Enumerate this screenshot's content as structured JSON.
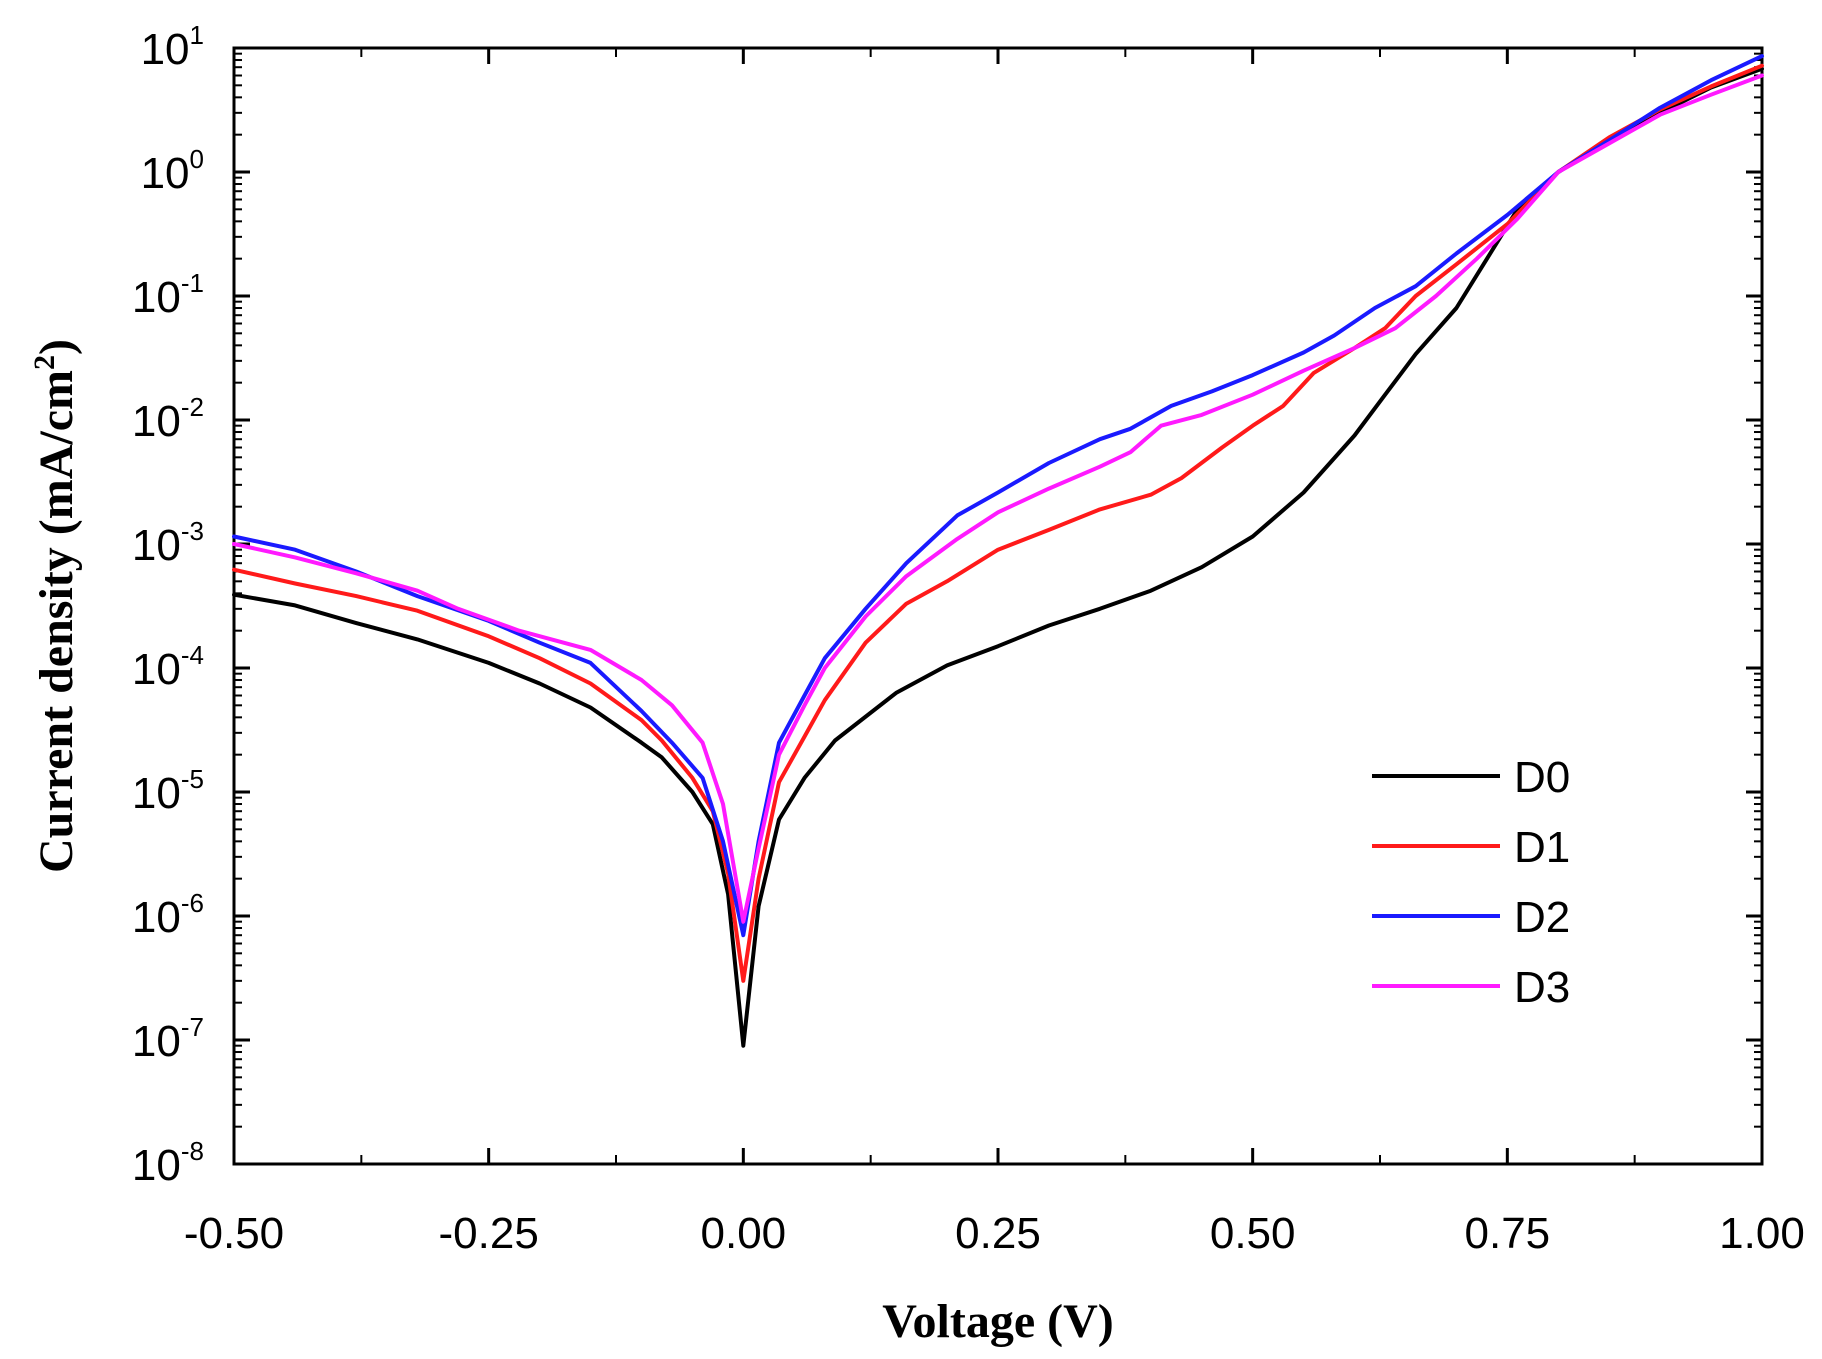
{
  "chart_data": {
    "type": "line",
    "y_scale": "log",
    "title": "",
    "xlabel": "Voltage (V)",
    "ylabel": "Current density (mA/cm",
    "ylabel_sup": "2",
    "ylabel_close": ")",
    "xlim": [
      -0.5,
      1.0
    ],
    "ylim": [
      1e-08,
      10
    ],
    "x_ticks": [
      -0.5,
      -0.25,
      0.0,
      0.25,
      0.5,
      0.75,
      1.0
    ],
    "x_tick_labels": [
      "-0.50",
      "-0.25",
      "0.00",
      "0.25",
      "0.50",
      "0.75",
      "1.00"
    ],
    "y_tick_exponents": [
      -8,
      -7,
      -6,
      -5,
      -4,
      -3,
      -2,
      -1,
      0,
      1
    ],
    "y_tick_labels": [
      {
        "base": "10",
        "exp": "-8"
      },
      {
        "base": "10",
        "exp": "-7"
      },
      {
        "base": "10",
        "exp": "-6"
      },
      {
        "base": "10",
        "exp": "-5"
      },
      {
        "base": "10",
        "exp": "-4"
      },
      {
        "base": "10",
        "exp": "-3"
      },
      {
        "base": "10",
        "exp": "-2"
      },
      {
        "base": "10",
        "exp": "-1"
      },
      {
        "base": "10",
        "exp": "0"
      },
      {
        "base": "10",
        "exp": "1"
      }
    ],
    "legend_position": "lower-right",
    "series": [
      {
        "name": "D0",
        "color": "#000000",
        "points": [
          [
            -0.5,
            0.00039
          ],
          [
            -0.44,
            0.00032
          ],
          [
            -0.38,
            0.00023
          ],
          [
            -0.32,
            0.00017
          ],
          [
            -0.25,
            0.00011
          ],
          [
            -0.2,
            7.5e-05
          ],
          [
            -0.15,
            4.8e-05
          ],
          [
            -0.1,
            2.5e-05
          ],
          [
            -0.08,
            1.9e-05
          ],
          [
            -0.05,
            1e-05
          ],
          [
            -0.03,
            5.5e-06
          ],
          [
            -0.015,
            1.5e-06
          ],
          [
            0.0,
            9e-08
          ],
          [
            0.015,
            1.2e-06
          ],
          [
            0.035,
            6e-06
          ],
          [
            0.06,
            1.3e-05
          ],
          [
            0.09,
            2.6e-05
          ],
          [
            0.15,
            6.3e-05
          ],
          [
            0.2,
            0.000105
          ],
          [
            0.25,
            0.00015
          ],
          [
            0.3,
            0.00022
          ],
          [
            0.35,
            0.0003
          ],
          [
            0.4,
            0.00042
          ],
          [
            0.45,
            0.00065
          ],
          [
            0.5,
            0.00115
          ],
          [
            0.55,
            0.0026
          ],
          [
            0.6,
            0.0075
          ],
          [
            0.63,
            0.016
          ],
          [
            0.66,
            0.034
          ],
          [
            0.7,
            0.08
          ],
          [
            0.73,
            0.2
          ],
          [
            0.76,
            0.5
          ],
          [
            0.8,
            1.0
          ],
          [
            0.85,
            1.8
          ],
          [
            0.9,
            3.0
          ],
          [
            0.95,
            4.8
          ],
          [
            1.0,
            6.8
          ]
        ]
      },
      {
        "name": "D1",
        "color": "#ff1a1a",
        "points": [
          [
            -0.5,
            0.00062
          ],
          [
            -0.44,
            0.00048
          ],
          [
            -0.38,
            0.00038
          ],
          [
            -0.32,
            0.00029
          ],
          [
            -0.25,
            0.00018
          ],
          [
            -0.2,
            0.00012
          ],
          [
            -0.15,
            7.5e-05
          ],
          [
            -0.1,
            3.8e-05
          ],
          [
            -0.08,
            2.6e-05
          ],
          [
            -0.05,
            1.3e-05
          ],
          [
            -0.03,
            7e-06
          ],
          [
            -0.015,
            2.2e-06
          ],
          [
            0.0,
            3e-07
          ],
          [
            0.015,
            2e-06
          ],
          [
            0.035,
            1.2e-05
          ],
          [
            0.06,
            2.8e-05
          ],
          [
            0.08,
            5.5e-05
          ],
          [
            0.12,
            0.00016
          ],
          [
            0.16,
            0.00033
          ],
          [
            0.2,
            0.0005
          ],
          [
            0.25,
            0.0009
          ],
          [
            0.3,
            0.0013
          ],
          [
            0.35,
            0.0019
          ],
          [
            0.4,
            0.0025
          ],
          [
            0.43,
            0.0034
          ],
          [
            0.47,
            0.006
          ],
          [
            0.5,
            0.009
          ],
          [
            0.53,
            0.013
          ],
          [
            0.56,
            0.024
          ],
          [
            0.6,
            0.038
          ],
          [
            0.63,
            0.055
          ],
          [
            0.66,
            0.1
          ],
          [
            0.7,
            0.18
          ],
          [
            0.75,
            0.38
          ],
          [
            0.8,
            1.0
          ],
          [
            0.85,
            1.9
          ],
          [
            0.9,
            3.2
          ],
          [
            0.95,
            4.9
          ],
          [
            1.0,
            7.2
          ]
        ]
      },
      {
        "name": "D2",
        "color": "#1a1aff",
        "points": [
          [
            -0.5,
            0.00115
          ],
          [
            -0.44,
            0.0009
          ],
          [
            -0.38,
            0.0006
          ],
          [
            -0.32,
            0.00038
          ],
          [
            -0.25,
            0.00024
          ],
          [
            -0.2,
            0.00016
          ],
          [
            -0.15,
            0.00011
          ],
          [
            -0.1,
            4.5e-05
          ],
          [
            -0.07,
            2.5e-05
          ],
          [
            -0.04,
            1.3e-05
          ],
          [
            -0.02,
            4e-06
          ],
          [
            0.0,
            7e-07
          ],
          [
            0.015,
            4e-06
          ],
          [
            0.035,
            2.5e-05
          ],
          [
            0.06,
            6e-05
          ],
          [
            0.08,
            0.00012
          ],
          [
            0.12,
            0.0003
          ],
          [
            0.16,
            0.0007
          ],
          [
            0.21,
            0.0017
          ],
          [
            0.25,
            0.0026
          ],
          [
            0.3,
            0.0045
          ],
          [
            0.35,
            0.007
          ],
          [
            0.38,
            0.0085
          ],
          [
            0.42,
            0.013
          ],
          [
            0.46,
            0.017
          ],
          [
            0.5,
            0.023
          ],
          [
            0.55,
            0.035
          ],
          [
            0.58,
            0.048
          ],
          [
            0.62,
            0.08
          ],
          [
            0.66,
            0.12
          ],
          [
            0.7,
            0.22
          ],
          [
            0.75,
            0.45
          ],
          [
            0.8,
            1.0
          ],
          [
            0.85,
            1.8
          ],
          [
            0.9,
            3.3
          ],
          [
            0.95,
            5.5
          ],
          [
            1.0,
            8.6
          ]
        ]
      },
      {
        "name": "D3",
        "color": "#ff1aff",
        "points": [
          [
            -0.5,
            0.001
          ],
          [
            -0.44,
            0.00078
          ],
          [
            -0.38,
            0.00058
          ],
          [
            -0.32,
            0.00042
          ],
          [
            -0.28,
            0.0003
          ],
          [
            -0.22,
            0.0002
          ],
          [
            -0.15,
            0.00014
          ],
          [
            -0.1,
            8e-05
          ],
          [
            -0.07,
            5e-05
          ],
          [
            -0.04,
            2.5e-05
          ],
          [
            -0.02,
            8e-06
          ],
          [
            0.0,
            9e-07
          ],
          [
            0.015,
            3.5e-06
          ],
          [
            0.035,
            2e-05
          ],
          [
            0.06,
            5e-05
          ],
          [
            0.08,
            0.0001
          ],
          [
            0.12,
            0.00026
          ],
          [
            0.16,
            0.00055
          ],
          [
            0.21,
            0.0011
          ],
          [
            0.25,
            0.0018
          ],
          [
            0.3,
            0.0028
          ],
          [
            0.35,
            0.0042
          ],
          [
            0.38,
            0.0055
          ],
          [
            0.41,
            0.009
          ],
          [
            0.45,
            0.011
          ],
          [
            0.5,
            0.016
          ],
          [
            0.55,
            0.025
          ],
          [
            0.6,
            0.038
          ],
          [
            0.64,
            0.055
          ],
          [
            0.68,
            0.1
          ],
          [
            0.72,
            0.2
          ],
          [
            0.76,
            0.42
          ],
          [
            0.8,
            1.0
          ],
          [
            0.85,
            1.7
          ],
          [
            0.9,
            2.9
          ],
          [
            0.95,
            4.2
          ],
          [
            1.0,
            6.0
          ]
        ]
      }
    ]
  }
}
